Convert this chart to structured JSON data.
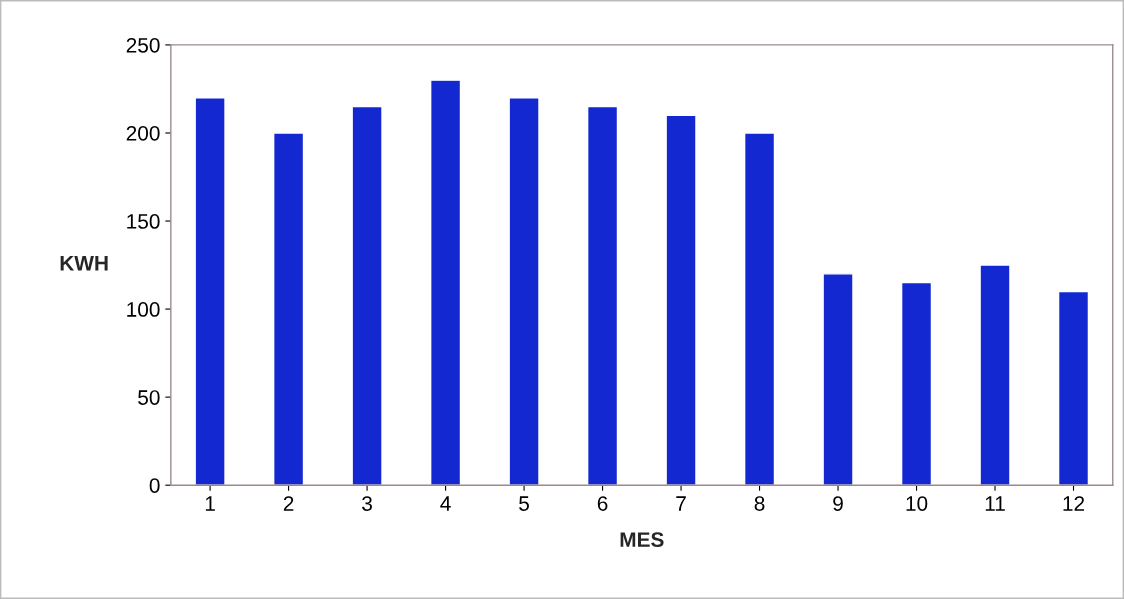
{
  "chart_data": {
    "type": "bar",
    "xlabel": "MES",
    "ylabel": "KWH",
    "categories": [
      "1",
      "2",
      "3",
      "4",
      "5",
      "6",
      "7",
      "8",
      "9",
      "10",
      "11",
      "12"
    ],
    "values": [
      220,
      200,
      215,
      230,
      220,
      215,
      210,
      200,
      120,
      115,
      125,
      110
    ],
    "color": "#1428d2",
    "ylim": [
      0,
      250
    ],
    "yticks": [
      0,
      50,
      100,
      150,
      200,
      250
    ],
    "grid": false
  }
}
